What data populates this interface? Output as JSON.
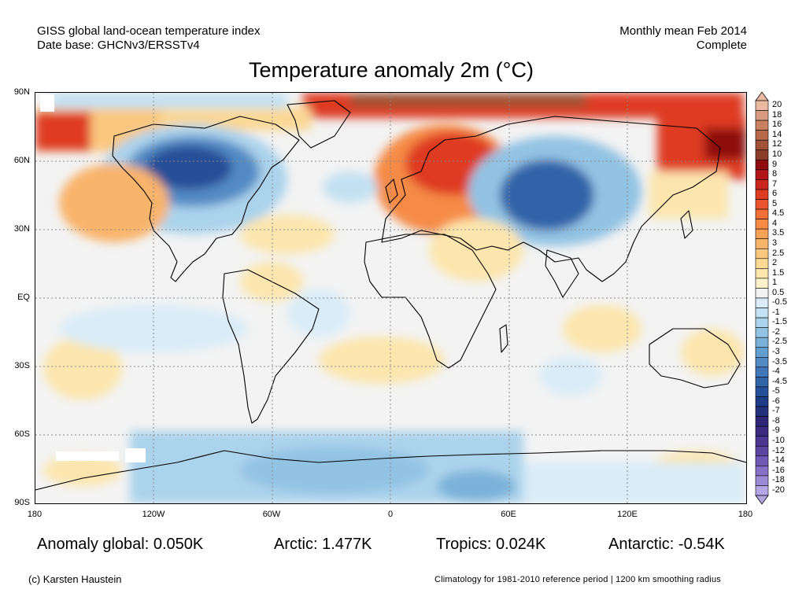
{
  "header": {
    "source_line1": "GISS global land-ocean temperature index",
    "source_line2": "Date base: GHCNv3/ERSSTv4",
    "period_line1": "Monthly mean Feb 2014",
    "period_line2": "Complete"
  },
  "title": "Temperature anomaly 2m (°C)",
  "map": {
    "lat_labels": [
      "90N",
      "60N",
      "30N",
      "EQ",
      "30S",
      "60S",
      "90S"
    ],
    "lon_labels": [
      "180",
      "120W",
      "60W",
      "0",
      "60E",
      "120E",
      "180"
    ]
  },
  "colorbar": {
    "labels": [
      "20",
      "18",
      "16",
      "14",
      "12",
      "10",
      "9",
      "8",
      "7",
      "6",
      "5",
      "4.5",
      "4",
      "3.5",
      "3",
      "2.5",
      "2",
      "1.5",
      "1",
      "0.5",
      "-0.5",
      "-1",
      "-1.5",
      "-2",
      "-2.5",
      "-3",
      "-3.5",
      "-4",
      "-4.5",
      "-5",
      "-6",
      "-7",
      "-8",
      "-9",
      "-10",
      "-12",
      "-14",
      "-16",
      "-18",
      "-20"
    ],
    "colors": [
      "#e9b9a2",
      "#d99b80",
      "#c98061",
      "#b5684a",
      "#9f5236",
      "#8a3e27",
      "#8e0b10",
      "#b2141b",
      "#cc2620",
      "#de3b24",
      "#ea5530",
      "#f1703a",
      "#f58b47",
      "#f7a157",
      "#f9b46c",
      "#fac77f",
      "#fbd894",
      "#fce6ad",
      "#fdf1cb",
      "#f3f3f3",
      "#d9ecf7",
      "#c3e1f2",
      "#acd3ec",
      "#93c3e3",
      "#7cb2d9",
      "#659fcf",
      "#528ac4",
      "#4176b7",
      "#3264a8",
      "#264f97",
      "#1f3d86",
      "#23307a",
      "#2d2776",
      "#3b2a80",
      "#4b3690",
      "#5c46a2",
      "#6f59b4",
      "#8470c5",
      "#9a89d5",
      "#b4a6e4"
    ]
  },
  "stats": {
    "global": "Anomaly global: 0.050K",
    "arctic": "Arctic: 1.477K",
    "tropics": "Tropics: 0.024K",
    "antarctic": "Antarctic: -0.54K"
  },
  "footer": {
    "copyright": "(c) Karsten Haustein",
    "note": "Climatology for 1981-2010 reference period | 1200 km smoothing radius"
  }
}
